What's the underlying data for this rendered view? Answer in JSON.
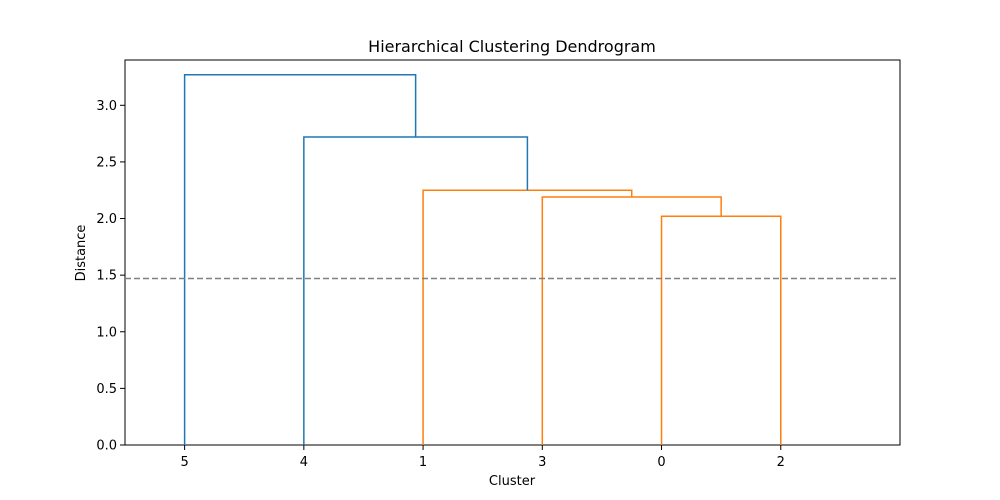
{
  "chart_data": {
    "type": "dendrogram",
    "title": "Hierarchical Clustering Dendrogram",
    "xlabel": "Cluster",
    "ylabel": "Distance",
    "ylim": [
      0.0,
      3.4
    ],
    "yticks": [
      0.0,
      0.5,
      1.0,
      1.5,
      2.0,
      2.5,
      3.0
    ],
    "ytick_labels": [
      "0.0",
      "0.5",
      "1.0",
      "1.5",
      "2.0",
      "2.5",
      "3.0"
    ],
    "leaves": [
      "5",
      "4",
      "1",
      "3",
      "0",
      "2"
    ],
    "threshold": 1.47,
    "colors": {
      "above_threshold": "#1f77b4",
      "cluster": "#ff7f0e",
      "threshold_line": "#808080"
    },
    "merges": [
      {
        "left": "0",
        "right": "2",
        "distance": 2.02,
        "color": "cluster"
      },
      {
        "left": "3",
        "right": "(0,2)",
        "distance": 2.19,
        "color": "cluster"
      },
      {
        "left": "1",
        "right": "(3,0,2)",
        "distance": 2.25,
        "color": "cluster"
      },
      {
        "left": "4",
        "right": "(1,3,0,2)",
        "distance": 2.72,
        "color": "above_threshold"
      },
      {
        "left": "5",
        "right": "(4,1,3,0,2)",
        "distance": 3.27,
        "color": "above_threshold"
      }
    ],
    "grid": false
  }
}
